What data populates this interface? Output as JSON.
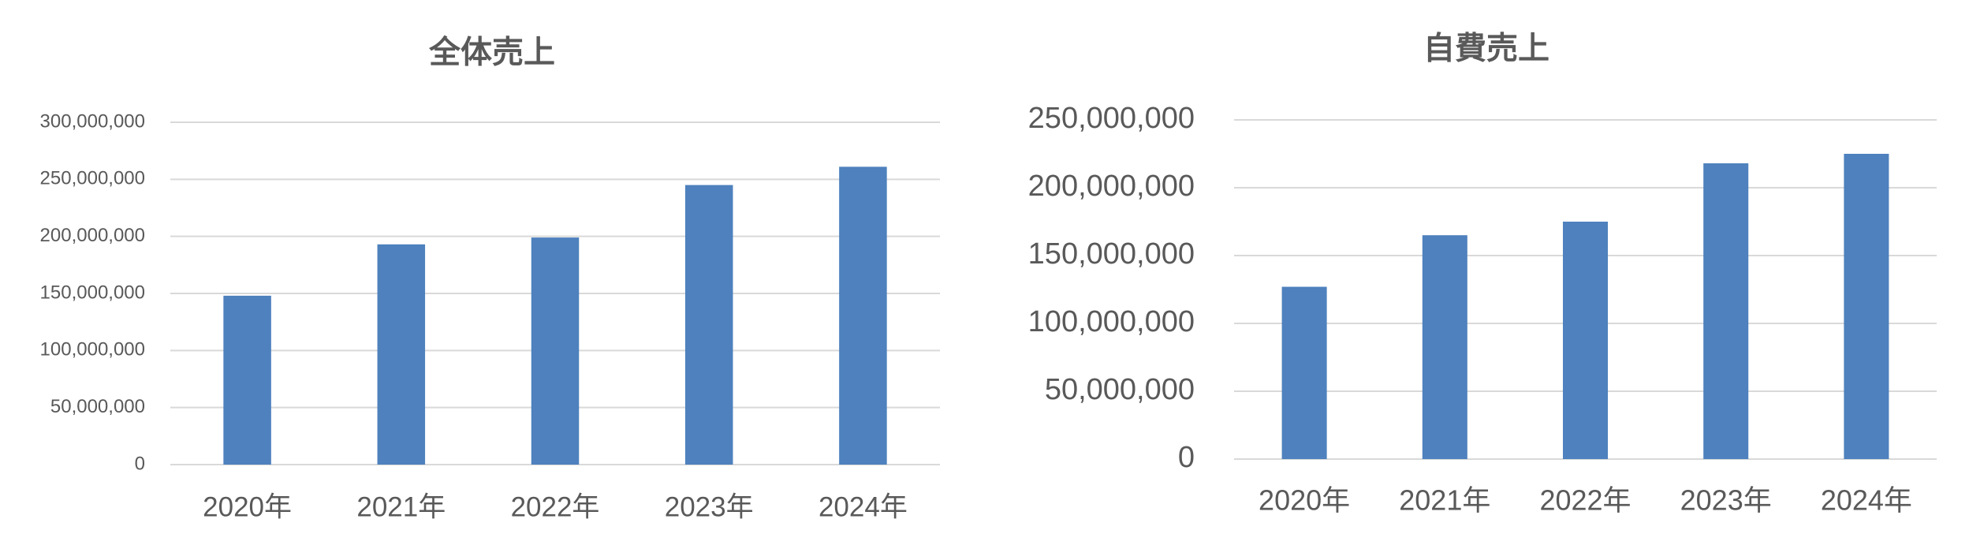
{
  "chart_data": [
    {
      "type": "bar",
      "title": "全体売上",
      "categories": [
        "2020年",
        "2021年",
        "2022年",
        "2023年",
        "2024年"
      ],
      "values": [
        148000000,
        193000000,
        199000000,
        245000000,
        261000000
      ],
      "color": "#4e81bd",
      "ylim": [
        0,
        300000000
      ],
      "yticks": [
        0,
        {
          "value": 50000000,
          "label": "50,000,000"
        },
        {
          "value": 100000000,
          "label": "100,000,000"
        },
        {
          "value": 150000000,
          "label": "150,000,000"
        },
        {
          "value": 200000000,
          "label": "200,000,000"
        },
        {
          "value": 250000000,
          "label": "250,000,000"
        },
        {
          "value": 300000000,
          "label": "300,000,000"
        }
      ],
      "grid": true
    },
    {
      "type": "bar",
      "title": "自費売上",
      "categories": [
        "2020年",
        "2021年",
        "2022年",
        "2023年",
        "2024年"
      ],
      "values": [
        127000000,
        165000000,
        175000000,
        218000000,
        225000000
      ],
      "color": "#4e81bd",
      "ylim": [
        0,
        250000000
      ],
      "yticks": [
        0,
        {
          "value": 50000000,
          "label": "50,000,000"
        },
        {
          "value": 100000000,
          "label": "100,000,000"
        },
        {
          "value": 150000000,
          "label": "150,000,000"
        },
        {
          "value": 200000000,
          "label": "200,000,000"
        },
        {
          "value": 250000000,
          "label": "250,000,000"
        }
      ],
      "grid": true
    }
  ]
}
